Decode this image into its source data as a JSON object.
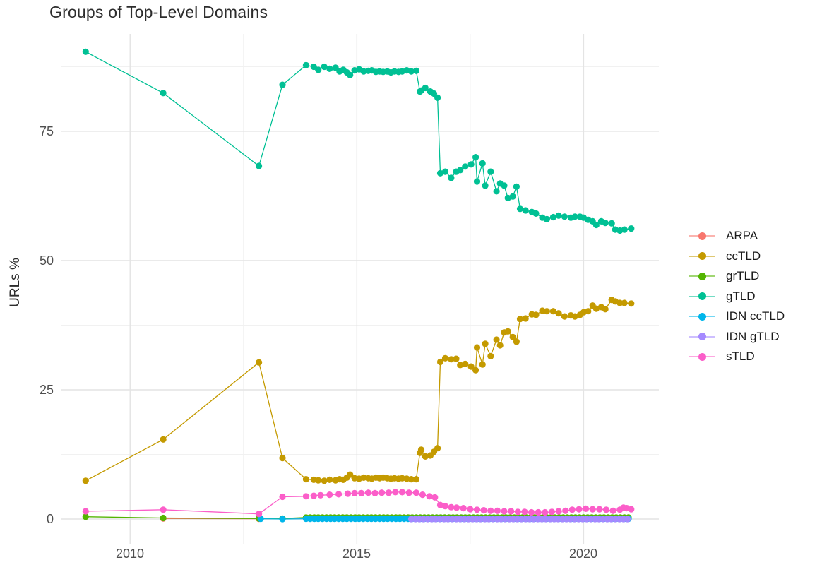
{
  "chart_data": {
    "type": "line",
    "title": "Groups of Top-Level Domains",
    "xlabel": "",
    "ylabel": "URLs %",
    "grid": true,
    "legend_position": "right",
    "x_range": [
      2008.47,
      2021.66
    ],
    "y_range": [
      -4.78,
      93.85
    ],
    "x_ticks": {
      "major": [
        2010,
        2015,
        2020
      ],
      "minor": [
        2012.5,
        2017.5
      ],
      "labels": [
        "2010",
        "2015",
        "2020"
      ]
    },
    "y_ticks": {
      "major": [
        0,
        25,
        50,
        75
      ],
      "minor": [
        12.5,
        37.5,
        62.5,
        87.5
      ],
      "labels": [
        "0",
        "25",
        "50",
        "75"
      ]
    },
    "series": [
      {
        "name": "ARPA",
        "color": "#F8766D",
        "points": [
          [
            2010.73,
            0.1
          ],
          [
            2012.84,
            0.05
          ],
          [
            2013.36,
            0.05
          ]
        ],
        "flat": {
          "start": 2013.88,
          "end": 2021.05,
          "step": 0.09,
          "value": 0.1
        }
      },
      {
        "name": "ccTLD",
        "color": "#C49A00",
        "points": [
          [
            2009.02,
            7.4
          ],
          [
            2010.73,
            15.4
          ],
          [
            2012.84,
            30.3
          ],
          [
            2013.36,
            11.8
          ],
          [
            2013.88,
            7.7
          ],
          [
            2014.05,
            7.6
          ],
          [
            2014.15,
            7.5
          ],
          [
            2014.28,
            7.4
          ],
          [
            2014.4,
            7.6
          ],
          [
            2014.53,
            7.5
          ],
          [
            2014.62,
            7.7
          ],
          [
            2014.7,
            7.6
          ],
          [
            2014.78,
            8.0
          ],
          [
            2014.85,
            8.6
          ],
          [
            2014.95,
            7.9
          ],
          [
            2015.05,
            7.8
          ],
          [
            2015.15,
            8.0
          ],
          [
            2015.25,
            7.9
          ],
          [
            2015.33,
            7.8
          ],
          [
            2015.42,
            8.0
          ],
          [
            2015.5,
            7.9
          ],
          [
            2015.58,
            8.0
          ],
          [
            2015.67,
            7.9
          ],
          [
            2015.75,
            7.8
          ],
          [
            2015.83,
            7.9
          ],
          [
            2015.92,
            7.8
          ],
          [
            2016.0,
            7.9
          ],
          [
            2016.1,
            7.8
          ],
          [
            2016.2,
            7.7
          ],
          [
            2016.31,
            7.7
          ],
          [
            2016.39,
            12.8
          ],
          [
            2016.42,
            13.4
          ],
          [
            2016.51,
            12.1
          ],
          [
            2016.62,
            12.3
          ],
          [
            2016.7,
            13.0
          ],
          [
            2016.78,
            13.7
          ],
          [
            2016.84,
            30.4
          ],
          [
            2016.95,
            31.1
          ],
          [
            2017.08,
            30.9
          ],
          [
            2017.19,
            31.0
          ],
          [
            2017.28,
            29.8
          ],
          [
            2017.39,
            30.0
          ],
          [
            2017.52,
            29.5
          ],
          [
            2017.62,
            28.8
          ],
          [
            2017.65,
            33.2
          ],
          [
            2017.77,
            29.9
          ],
          [
            2017.83,
            33.9
          ],
          [
            2017.95,
            31.5
          ],
          [
            2018.08,
            34.7
          ],
          [
            2018.16,
            33.6
          ],
          [
            2018.25,
            36.1
          ],
          [
            2018.33,
            36.3
          ],
          [
            2018.44,
            35.2
          ],
          [
            2018.52,
            34.3
          ],
          [
            2018.6,
            38.7
          ],
          [
            2018.72,
            38.8
          ],
          [
            2018.86,
            39.6
          ],
          [
            2018.95,
            39.5
          ],
          [
            2019.09,
            40.3
          ],
          [
            2019.19,
            40.2
          ],
          [
            2019.33,
            40.2
          ],
          [
            2019.45,
            39.8
          ],
          [
            2019.58,
            39.2
          ],
          [
            2019.72,
            39.4
          ],
          [
            2019.81,
            39.2
          ],
          [
            2019.92,
            39.5
          ],
          [
            2020.0,
            40.0
          ],
          [
            2020.1,
            40.2
          ],
          [
            2020.2,
            41.3
          ],
          [
            2020.28,
            40.7
          ],
          [
            2020.39,
            41.0
          ],
          [
            2020.48,
            40.6
          ],
          [
            2020.62,
            42.4
          ],
          [
            2020.7,
            42.1
          ],
          [
            2020.8,
            41.8
          ],
          [
            2020.9,
            41.8
          ],
          [
            2021.05,
            41.7
          ]
        ]
      },
      {
        "name": "grTLD",
        "color": "#53B400",
        "points": [
          [
            2009.02,
            0.45
          ],
          [
            2010.73,
            0.2
          ],
          [
            2012.84,
            0.1
          ],
          [
            2013.36,
            0.1
          ]
        ],
        "flat": {
          "start": 2013.88,
          "end": 2021.05,
          "step": 0.09,
          "value": 0.3
        }
      },
      {
        "name": "gTLD",
        "color": "#00C094",
        "points": [
          [
            2009.02,
            90.4
          ],
          [
            2010.73,
            82.4
          ],
          [
            2012.84,
            68.3
          ],
          [
            2013.36,
            84.0
          ],
          [
            2013.88,
            87.8
          ],
          [
            2014.05,
            87.5
          ],
          [
            2014.15,
            86.9
          ],
          [
            2014.28,
            87.5
          ],
          [
            2014.4,
            87.1
          ],
          [
            2014.53,
            87.3
          ],
          [
            2014.62,
            86.6
          ],
          [
            2014.7,
            86.9
          ],
          [
            2014.78,
            86.4
          ],
          [
            2014.85,
            85.9
          ],
          [
            2014.95,
            86.8
          ],
          [
            2015.05,
            87.0
          ],
          [
            2015.15,
            86.6
          ],
          [
            2015.25,
            86.7
          ],
          [
            2015.33,
            86.8
          ],
          [
            2015.42,
            86.5
          ],
          [
            2015.5,
            86.6
          ],
          [
            2015.58,
            86.5
          ],
          [
            2015.67,
            86.6
          ],
          [
            2015.75,
            86.4
          ],
          [
            2015.83,
            86.6
          ],
          [
            2015.92,
            86.5
          ],
          [
            2016.0,
            86.6
          ],
          [
            2016.1,
            86.8
          ],
          [
            2016.2,
            86.6
          ],
          [
            2016.31,
            86.7
          ],
          [
            2016.39,
            82.7
          ],
          [
            2016.42,
            82.9
          ],
          [
            2016.51,
            83.4
          ],
          [
            2016.62,
            82.7
          ],
          [
            2016.7,
            82.3
          ],
          [
            2016.78,
            81.5
          ],
          [
            2016.84,
            66.9
          ],
          [
            2016.95,
            67.2
          ],
          [
            2017.08,
            66.0
          ],
          [
            2017.19,
            67.2
          ],
          [
            2017.28,
            67.5
          ],
          [
            2017.39,
            68.2
          ],
          [
            2017.52,
            68.6
          ],
          [
            2017.62,
            70.0
          ],
          [
            2017.65,
            65.3
          ],
          [
            2017.77,
            68.8
          ],
          [
            2017.83,
            64.5
          ],
          [
            2017.95,
            67.2
          ],
          [
            2018.08,
            63.4
          ],
          [
            2018.16,
            64.9
          ],
          [
            2018.25,
            64.5
          ],
          [
            2018.33,
            62.1
          ],
          [
            2018.44,
            62.4
          ],
          [
            2018.52,
            64.3
          ],
          [
            2018.6,
            60.0
          ],
          [
            2018.72,
            59.7
          ],
          [
            2018.86,
            59.4
          ],
          [
            2018.95,
            59.1
          ],
          [
            2019.09,
            58.3
          ],
          [
            2019.19,
            58.0
          ],
          [
            2019.33,
            58.4
          ],
          [
            2019.45,
            58.7
          ],
          [
            2019.58,
            58.5
          ],
          [
            2019.72,
            58.3
          ],
          [
            2019.81,
            58.5
          ],
          [
            2019.92,
            58.5
          ],
          [
            2020.0,
            58.3
          ],
          [
            2020.1,
            57.9
          ],
          [
            2020.2,
            57.6
          ],
          [
            2020.28,
            56.9
          ],
          [
            2020.39,
            57.6
          ],
          [
            2020.48,
            57.3
          ],
          [
            2020.62,
            57.2
          ],
          [
            2020.7,
            56.0
          ],
          [
            2020.8,
            55.8
          ],
          [
            2020.9,
            56.0
          ],
          [
            2021.05,
            56.2
          ]
        ]
      },
      {
        "name": "IDN ccTLD",
        "color": "#00B6EB",
        "points": [
          [
            2012.88,
            0.05
          ],
          [
            2013.36,
            0.0
          ]
        ],
        "flat": {
          "start": 2013.88,
          "end": 2021.05,
          "step": 0.09,
          "value": 0.05
        }
      },
      {
        "name": "IDN gTLD",
        "color": "#A58AFF",
        "points": [],
        "flat": {
          "start": 2016.2,
          "end": 2021.05,
          "step": 0.09,
          "value": 0.0
        }
      },
      {
        "name": "sTLD",
        "color": "#FB5EC9",
        "points": [
          [
            2009.02,
            1.5
          ],
          [
            2010.73,
            1.8
          ],
          [
            2012.84,
            1.0
          ],
          [
            2013.36,
            4.3
          ],
          [
            2013.88,
            4.4
          ],
          [
            2014.05,
            4.5
          ],
          [
            2014.2,
            4.6
          ],
          [
            2014.4,
            4.7
          ],
          [
            2014.6,
            4.8
          ],
          [
            2014.8,
            4.9
          ],
          [
            2014.95,
            5.0
          ],
          [
            2015.1,
            5.0
          ],
          [
            2015.25,
            5.1
          ],
          [
            2015.4,
            5.0
          ],
          [
            2015.55,
            5.1
          ],
          [
            2015.7,
            5.1
          ],
          [
            2015.85,
            5.2
          ],
          [
            2016.0,
            5.2
          ],
          [
            2016.15,
            5.1
          ],
          [
            2016.31,
            5.1
          ],
          [
            2016.45,
            4.7
          ],
          [
            2016.6,
            4.4
          ],
          [
            2016.72,
            4.2
          ],
          [
            2016.84,
            2.7
          ],
          [
            2016.95,
            2.5
          ],
          [
            2017.08,
            2.3
          ],
          [
            2017.2,
            2.2
          ],
          [
            2017.35,
            2.1
          ],
          [
            2017.5,
            1.9
          ],
          [
            2017.65,
            1.8
          ],
          [
            2017.8,
            1.7
          ],
          [
            2017.95,
            1.6
          ],
          [
            2018.1,
            1.6
          ],
          [
            2018.25,
            1.5
          ],
          [
            2018.4,
            1.5
          ],
          [
            2018.55,
            1.4
          ],
          [
            2018.7,
            1.4
          ],
          [
            2018.85,
            1.3
          ],
          [
            2019.0,
            1.3
          ],
          [
            2019.15,
            1.3
          ],
          [
            2019.3,
            1.4
          ],
          [
            2019.45,
            1.5
          ],
          [
            2019.6,
            1.6
          ],
          [
            2019.75,
            1.8
          ],
          [
            2019.9,
            1.9
          ],
          [
            2020.05,
            2.0
          ],
          [
            2020.2,
            1.9
          ],
          [
            2020.35,
            1.9
          ],
          [
            2020.5,
            1.8
          ],
          [
            2020.65,
            1.6
          ],
          [
            2020.8,
            1.8
          ],
          [
            2020.88,
            2.2
          ],
          [
            2020.95,
            2.1
          ],
          [
            2021.05,
            1.9
          ]
        ]
      }
    ],
    "grid_colors": {
      "major": "#e4e4e4",
      "minor": "#f1f1f1"
    }
  }
}
